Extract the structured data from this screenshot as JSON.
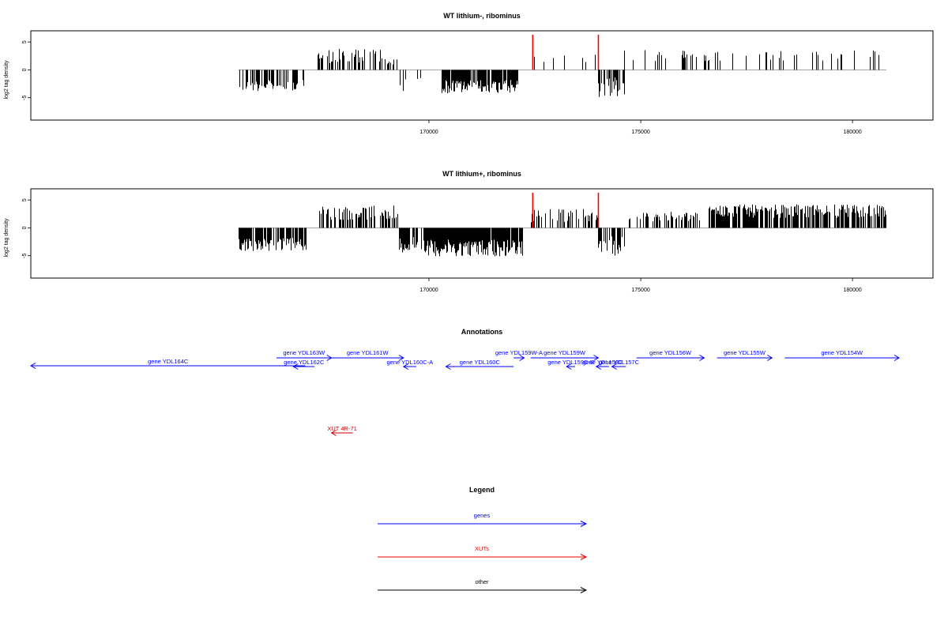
{
  "chart_data": [
    {
      "type": "bar",
      "title": "WT lithium-, ribominus",
      "ylabel": "log2 tag density",
      "xlim": [
        160600,
        181900
      ],
      "ylim": [
        -9,
        7
      ],
      "yticks": [
        -5,
        0,
        5
      ],
      "xticks": [
        170000,
        175000,
        180000
      ],
      "grid": false,
      "segments": [
        {
          "start": 165500,
          "end": 167100,
          "sign": -1,
          "mag": 2.8,
          "var": 1.0,
          "density": 0.55
        },
        {
          "start": 167300,
          "end": 168900,
          "sign": 1,
          "mag": 2.5,
          "var": 1.3,
          "density": 0.45
        },
        {
          "start": 168900,
          "end": 169300,
          "sign": 1,
          "mag": 1.5,
          "var": 0.6,
          "density": 0.35
        },
        {
          "start": 169300,
          "end": 169900,
          "sign": -1,
          "mag": 2.5,
          "var": 1.3,
          "density": 0.25
        },
        {
          "start": 170300,
          "end": 172100,
          "sign": -1,
          "mag": 3.0,
          "var": 1.2,
          "density": 0.85
        },
        {
          "start": 172400,
          "end": 174000,
          "sign": 1,
          "mag": 1.8,
          "var": 1.0,
          "density": 0.12
        },
        {
          "start": 174000,
          "end": 174600,
          "sign": -1,
          "mag": 3.0,
          "var": 2.0,
          "density": 0.7
        },
        {
          "start": 174600,
          "end": 180800,
          "sign": 1,
          "mag": 2.6,
          "var": 1.0,
          "density": 0.13
        }
      ],
      "highlights": [
        {
          "x": 172450,
          "value": 6.3
        },
        {
          "x": 174000,
          "value": 6.3
        }
      ]
    },
    {
      "type": "bar",
      "title": "WT lithium+, ribominus",
      "ylabel": "log2 tag density",
      "xlim": [
        160600,
        181900
      ],
      "ylim": [
        -9,
        7
      ],
      "yticks": [
        -5,
        0,
        5
      ],
      "xticks": [
        170000,
        175000,
        180000
      ],
      "grid": false,
      "segments": [
        {
          "start": 165500,
          "end": 167100,
          "sign": -1,
          "mag": 3.0,
          "var": 1.2,
          "density": 0.8
        },
        {
          "start": 167400,
          "end": 169300,
          "sign": 1,
          "mag": 2.7,
          "var": 1.3,
          "density": 0.55
        },
        {
          "start": 169300,
          "end": 169900,
          "sign": -1,
          "mag": 3.0,
          "var": 1.4,
          "density": 0.7
        },
        {
          "start": 169900,
          "end": 172200,
          "sign": -1,
          "mag": 3.6,
          "var": 1.5,
          "density": 0.95
        },
        {
          "start": 172400,
          "end": 174000,
          "sign": 1,
          "mag": 2.2,
          "var": 1.2,
          "density": 0.35
        },
        {
          "start": 174000,
          "end": 174600,
          "sign": -1,
          "mag": 3.2,
          "var": 2.0,
          "density": 0.7
        },
        {
          "start": 174700,
          "end": 176600,
          "sign": 1,
          "mag": 2.0,
          "var": 0.9,
          "density": 0.4
        },
        {
          "start": 176600,
          "end": 180800,
          "sign": 1,
          "mag": 3.0,
          "var": 1.2,
          "density": 0.75
        }
      ],
      "highlights": [
        {
          "x": 172450,
          "value": 6.3
        },
        {
          "x": 174000,
          "value": 6.3
        }
      ]
    }
  ],
  "annotations": {
    "title": "Annotations",
    "features": [
      {
        "label": "gene YDL164C",
        "start": 160600,
        "end": 167080,
        "strand": "-",
        "kind": "gene",
        "row": 2
      },
      {
        "label": "gene YDL163W",
        "start": 166400,
        "end": 167700,
        "strand": "+",
        "kind": "gene",
        "row": 0
      },
      {
        "label": "gene YDL162C",
        "start": 166800,
        "end": 167300,
        "strand": "-",
        "kind": "gene",
        "row": 1
      },
      {
        "label": "gene YDL161W",
        "start": 167700,
        "end": 169400,
        "strand": "+",
        "kind": "gene",
        "row": 0
      },
      {
        "label": "gene YDL160C-A",
        "start": 169400,
        "end": 169700,
        "strand": "-",
        "kind": "gene",
        "row": 1
      },
      {
        "label": "gene YDL160C",
        "start": 170400,
        "end": 172000,
        "strand": "-",
        "kind": "gene",
        "row": 1
      },
      {
        "label": "gene YDL159W-A",
        "start": 172000,
        "end": 172250,
        "strand": "+",
        "kind": "gene",
        "row": 0
      },
      {
        "label": "gene YDL159W",
        "start": 172400,
        "end": 174000,
        "strand": "+",
        "kind": "gene",
        "row": 0
      },
      {
        "label": "gene YDL159C-B",
        "start": 173250,
        "end": 173450,
        "strand": "-",
        "kind": "gene",
        "row": 1
      },
      {
        "label": "gene YDL158C",
        "start": 173950,
        "end": 174250,
        "strand": "-",
        "kind": "gene",
        "row": 1
      },
      {
        "label": "gene YDL157C",
        "start": 174320,
        "end": 174650,
        "strand": "-",
        "kind": "gene",
        "row": 1
      },
      {
        "label": "gene YDL156W",
        "start": 174900,
        "end": 176500,
        "strand": "+",
        "kind": "gene",
        "row": 0
      },
      {
        "label": "gene YDL155W",
        "start": 176800,
        "end": 178100,
        "strand": "+",
        "kind": "gene",
        "row": 0
      },
      {
        "label": "gene YDL154W",
        "start": 178400,
        "end": 181100,
        "strand": "+",
        "kind": "gene",
        "row": 0
      },
      {
        "label": "XUT 4R-71",
        "start": 167700,
        "end": 168200,
        "strand": "-",
        "kind": "xut",
        "row": 3
      }
    ]
  },
  "legend": {
    "title": "Legend",
    "items": [
      {
        "label": "genes",
        "color": "#0000ff"
      },
      {
        "label": "XUTs",
        "color": "#ee0000"
      },
      {
        "label": "other",
        "color": "#000000"
      }
    ]
  },
  "colors": {
    "gene": "#0000ff",
    "xut": "#cc0000",
    "highlight": "#ff0000",
    "bar": "#000000",
    "baseline": "#999999"
  }
}
